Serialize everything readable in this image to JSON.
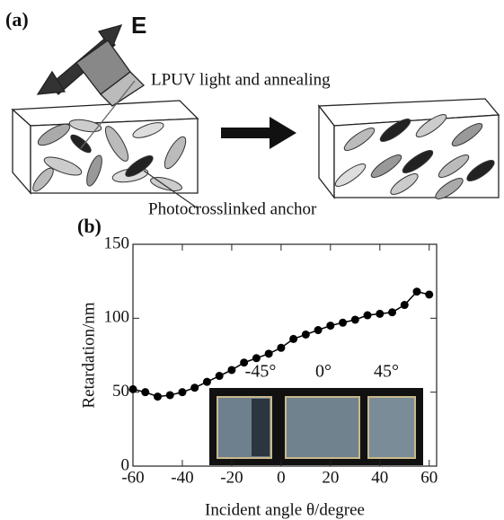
{
  "diagram": {
    "label": "(a)",
    "field": "E",
    "process": "LPUV light and annealing",
    "anchor": "Photocrosslinked anchor"
  },
  "chart_label": "(b)",
  "chart_data": {
    "type": "line",
    "xlabel": "Incident angle θ/degree",
    "ylabel": "Retardation/nm",
    "x": [
      -60,
      -55,
      -50,
      -45,
      -40,
      -35,
      -30,
      -25,
      -20,
      -15,
      -10,
      -5,
      0,
      5,
      10,
      15,
      20,
      25,
      30,
      35,
      40,
      45,
      50,
      55,
      60
    ],
    "values": [
      52,
      50,
      47,
      48,
      50,
      53,
      57,
      61,
      65,
      70,
      73,
      76,
      80,
      86,
      89,
      92,
      95,
      97,
      99,
      102,
      103,
      104,
      109,
      118,
      116
    ],
    "color": "#000000",
    "xlim": [
      -60,
      63
    ],
    "ylim": [
      0,
      150
    ],
    "xticks": [
      -60,
      -40,
      -20,
      0,
      20,
      40,
      60
    ],
    "yticks": [
      0,
      50,
      100,
      150
    ],
    "annotations": [
      "-45°",
      "0°",
      "45°"
    ]
  }
}
